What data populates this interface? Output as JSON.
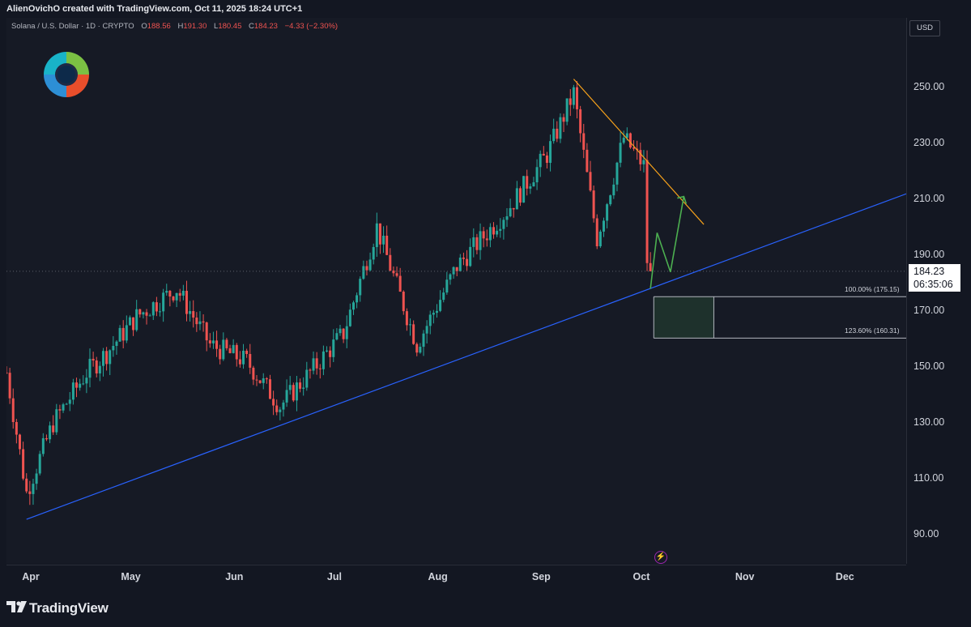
{
  "header": {
    "credit": "AlienOvichO created with TradingView.com, Oct 11, 2025 18:24 UTC+1"
  },
  "legend": {
    "symbol": "Solana / U.S. Dollar · 1D · CRYPTO",
    "o_label": "O",
    "o_value": "188.56",
    "h_label": "H",
    "h_value": "191.30",
    "l_label": "L",
    "l_value": "180.45",
    "c_label": "C",
    "c_value": "184.23",
    "change": "−4.33 (−2.30%)"
  },
  "axis": {
    "currency": "USD",
    "current_price": "184.23",
    "countdown": "06:35:06"
  },
  "footer": {
    "brand": "TradingView"
  },
  "fib": {
    "level_100": "100.00% (175.15)",
    "level_1236": "123.60% (160.31)"
  },
  "colors": {
    "background": "#161a25",
    "up": "#26a69a",
    "down": "#ef5350",
    "support_line": "#2962ff",
    "resistance_line": "#f7a21b",
    "projection": "#4caf50"
  },
  "icons": {
    "logo": "colorful-swirl-logo",
    "tv": "tradingview-logo",
    "alert": "lightning-icon"
  },
  "chart_data": {
    "type": "candlestick",
    "symbol": "Solana / U.S. Dollar",
    "interval": "1D",
    "y_ticks": [
      90,
      110,
      130,
      150,
      170,
      190,
      210,
      230,
      250
    ],
    "ylim": [
      84.4,
      262.3
    ],
    "x_ticks": [
      "Apr",
      "May",
      "Jun",
      "Jul",
      "Aug",
      "Sep",
      "Oct",
      "Nov",
      "Dec"
    ],
    "last_price": 184.23,
    "closes_approx": [
      {
        "date": "Apr 1",
        "close": 148
      },
      {
        "date": "Apr 7",
        "close": 105
      },
      {
        "date": "Apr 15",
        "close": 130
      },
      {
        "date": "Apr 25",
        "close": 148
      },
      {
        "date": "May 1",
        "close": 155
      },
      {
        "date": "May 10",
        "close": 168
      },
      {
        "date": "May 22",
        "close": 178
      },
      {
        "date": "Jun 1",
        "close": 158
      },
      {
        "date": "Jun 12",
        "close": 152
      },
      {
        "date": "Jun 22",
        "close": 136
      },
      {
        "date": "Jul 1",
        "close": 148
      },
      {
        "date": "Jul 11",
        "close": 162
      },
      {
        "date": "Jul 21",
        "close": 200
      },
      {
        "date": "Aug 2",
        "close": 158
      },
      {
        "date": "Aug 14",
        "close": 186
      },
      {
        "date": "Aug 29",
        "close": 206
      },
      {
        "date": "Sep 10",
        "close": 226
      },
      {
        "date": "Sep 18",
        "close": 248
      },
      {
        "date": "Sep 25",
        "close": 196
      },
      {
        "date": "Oct 3",
        "close": 232
      },
      {
        "date": "Oct 9",
        "close": 222
      },
      {
        "date": "Oct 10",
        "close": 188
      },
      {
        "date": "Oct 11",
        "close": 184.23
      }
    ],
    "drawings": {
      "support_trendline": [
        {
          "date": "Apr 7",
          "price": 95.5
        },
        {
          "date": "Dec 3",
          "price": 201.5
        }
      ],
      "resistance_trendline": [
        {
          "date": "Sep 18",
          "price": 253
        },
        {
          "date": "Oct 27",
          "price": 201
        }
      ],
      "fib_zone": {
        "top": 175.15,
        "bottom": 160.31
      },
      "projection_path": [
        {
          "date": "Oct 11",
          "price": 178
        },
        {
          "date": "Oct 13",
          "price": 198
        },
        {
          "date": "Oct 17",
          "price": 184
        },
        {
          "date": "Oct 21",
          "price": 211
        }
      ]
    }
  }
}
